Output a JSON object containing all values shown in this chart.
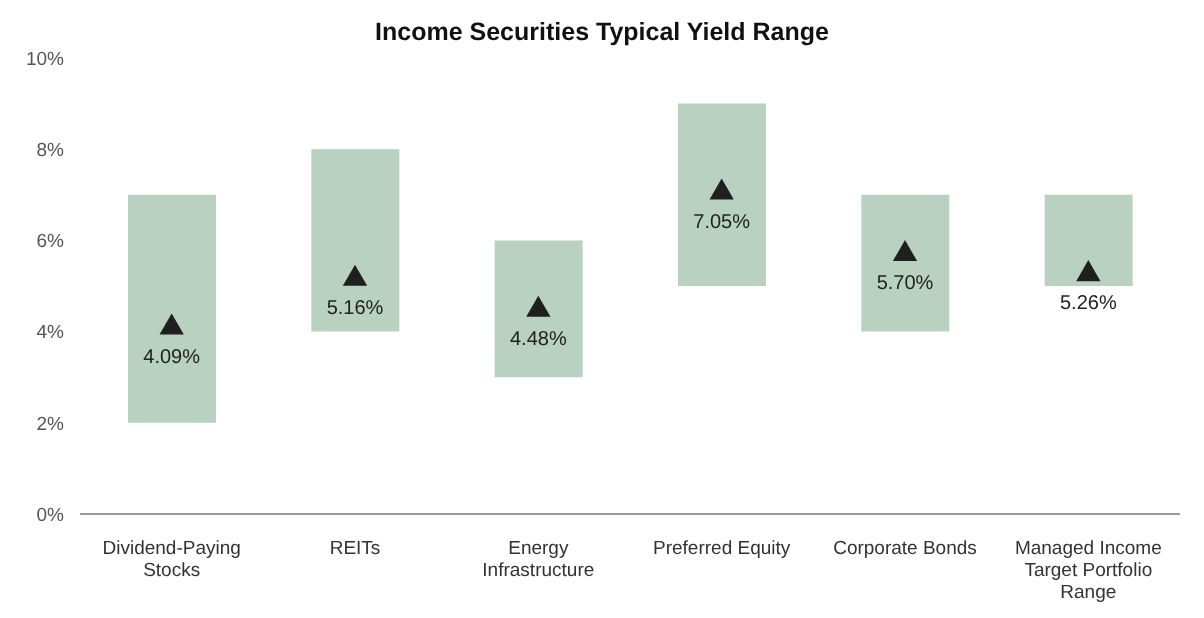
{
  "chart_data": {
    "type": "bar",
    "title": "Income Securities Typical Yield Range",
    "categories": [
      "Dividend-Paying Stocks",
      "REITs",
      "Energy Infrastructure",
      "Preferred Equity",
      "Corporate Bonds",
      "Managed Income Target Portfolio Range"
    ],
    "base": [
      2,
      4,
      3,
      5,
      4,
      5
    ],
    "values": [
      5,
      4,
      3,
      4,
      3,
      2
    ],
    "color": "#b8d1c0",
    "series": [
      {
        "type": "scatter",
        "x": [
          "Dividend-Paying Stocks",
          "REITs",
          "Energy Infrastructure",
          "Preferred Equity",
          "Corporate Bonds",
          "Managed Income Target Portfolio Range"
        ],
        "values": [
          4.09,
          5.16,
          4.48,
          7.05,
          5.7,
          5.26
        ],
        "value_labels": [
          "4.09%",
          "5.16%",
          "4.48%",
          "7.05%",
          "5.70%",
          "5.26%"
        ],
        "marker": "triangle",
        "color": "#1f1f1f"
      }
    ],
    "ylim": [
      0,
      10
    ],
    "yticks": [
      {
        "value": 0,
        "label": "0%"
      },
      {
        "value": 2,
        "label": "2%"
      },
      {
        "value": 4,
        "label": "4%"
      },
      {
        "value": 6,
        "label": "6%"
      },
      {
        "value": 8,
        "label": "8%"
      },
      {
        "value": 10,
        "label": "10%"
      }
    ],
    "grid": false,
    "legend": false
  }
}
